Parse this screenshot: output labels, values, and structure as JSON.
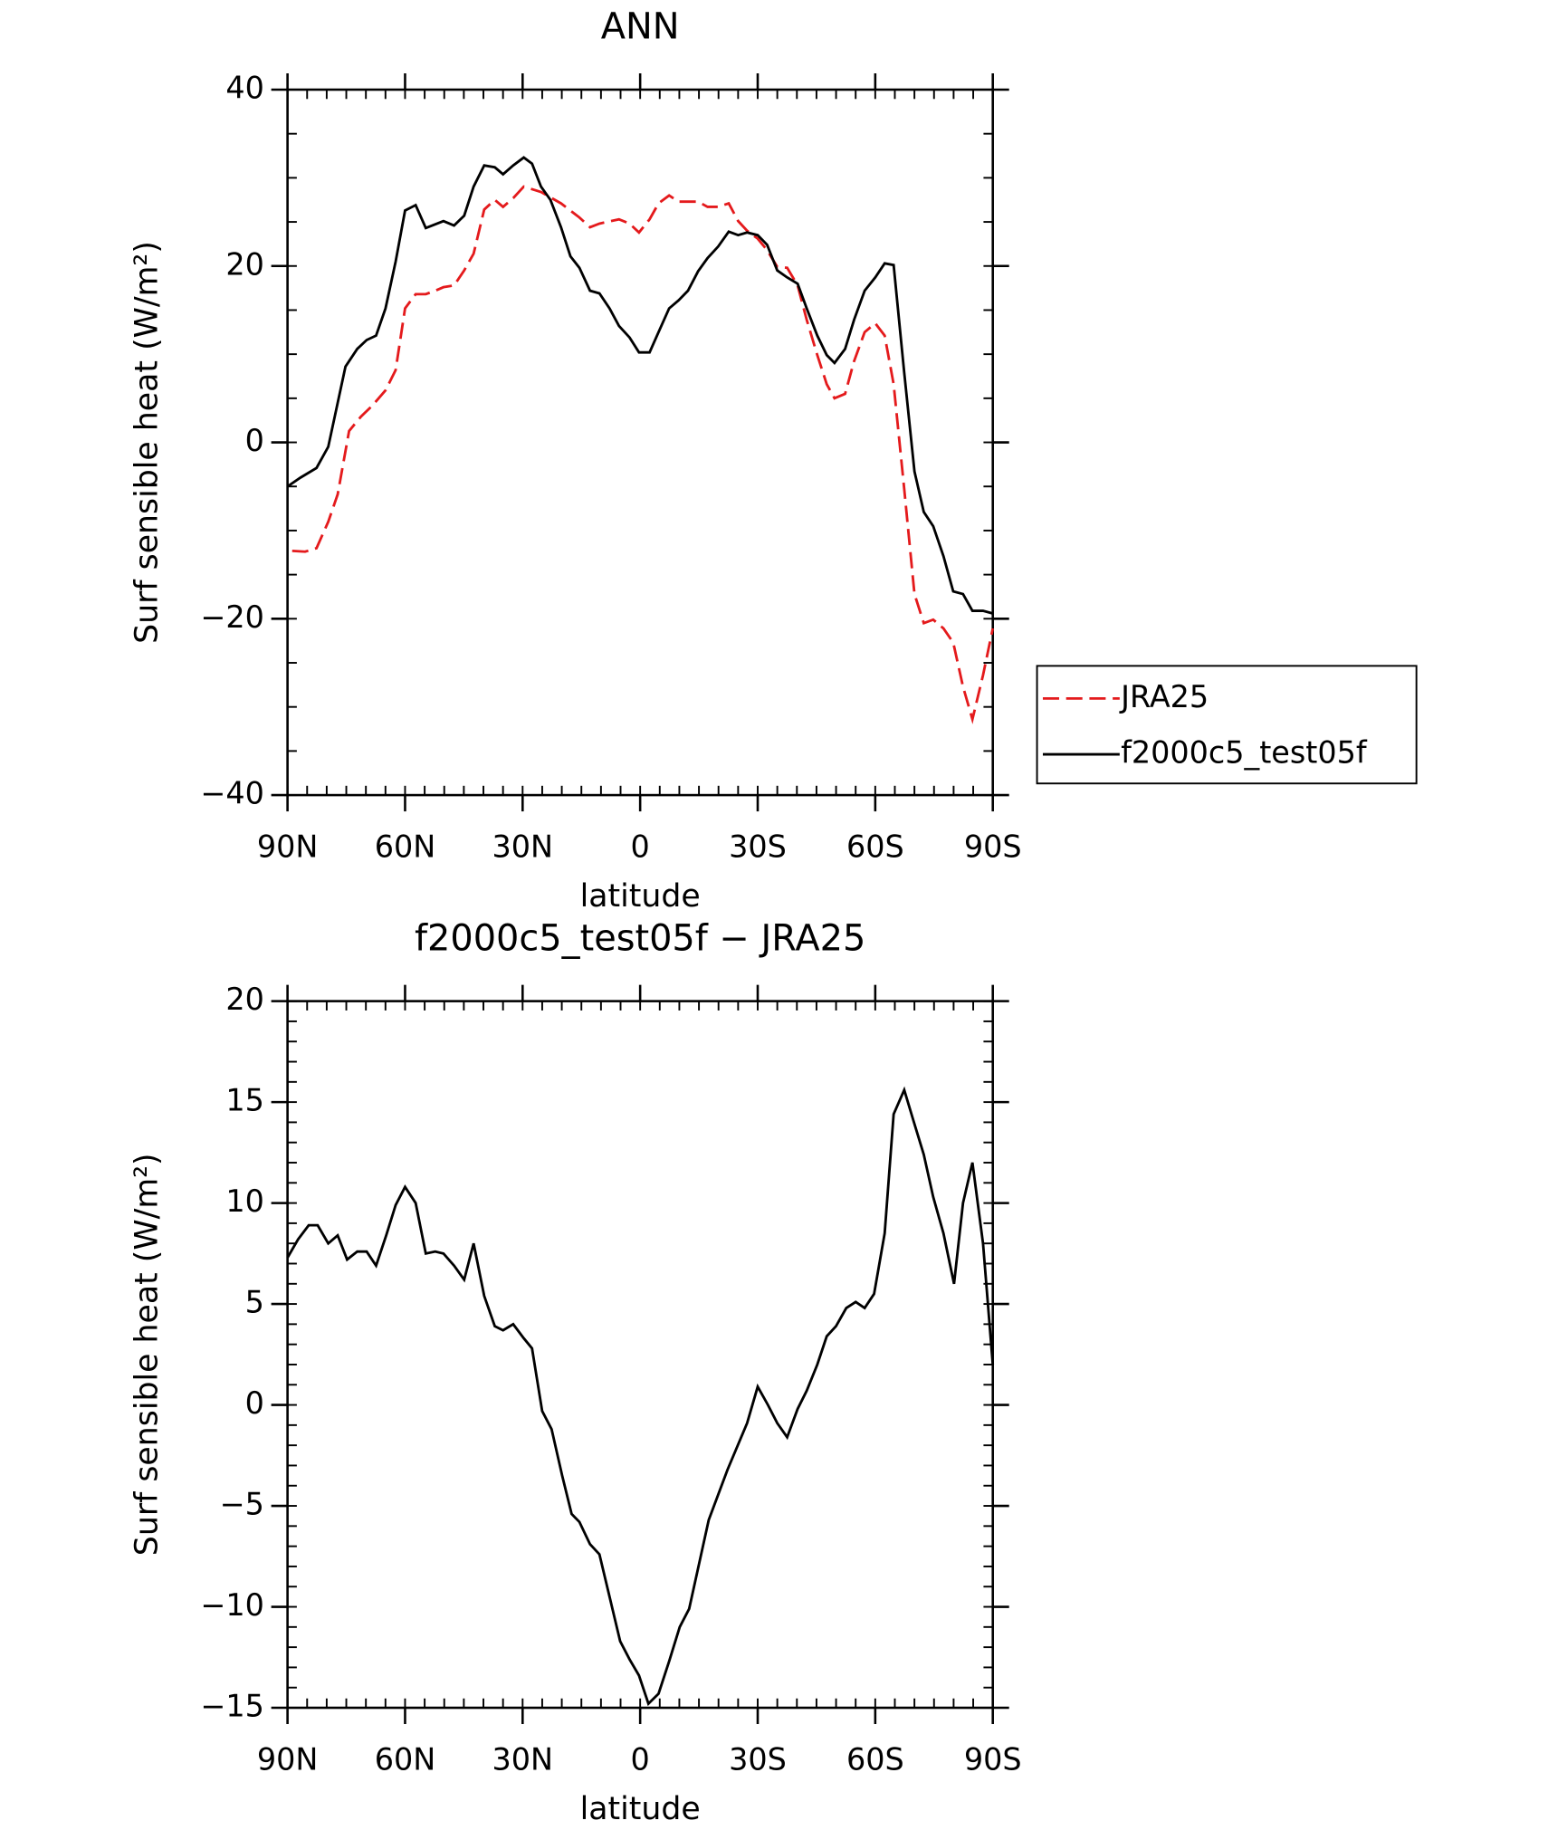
{
  "chart_data": [
    {
      "type": "line",
      "title": "ANN",
      "xlabel": "latitude",
      "ylabel": "Surf sensible heat (W/m²)",
      "xlim": [
        90,
        -90
      ],
      "xticks": [
        {
          "value": 90,
          "label": "90N"
        },
        {
          "value": 60,
          "label": "60N"
        },
        {
          "value": 30,
          "label": "30N"
        },
        0,
        {
          "value": -30,
          "label": "30S"
        },
        {
          "value": -60,
          "label": "60S"
        },
        {
          "value": -90,
          "label": "90S"
        }
      ],
      "xminor": 5,
      "ylim": [
        -40,
        40
      ],
      "yticks": [
        {
          "value": -40,
          "label": "−40"
        },
        {
          "value": -20,
          "label": "−20"
        },
        0,
        20,
        40
      ],
      "yminor": 5,
      "legend": "right",
      "series": [
        {
          "name": "JRA25",
          "color": "#e41a1c",
          "dash": true,
          "x": [
            88.8,
            85.5,
            82.6,
            79.6,
            77.2,
            74.3,
            71.3,
            68.3,
            65,
            62.4,
            60,
            57.3,
            54.7,
            52.3,
            50.2,
            47.5,
            44.9,
            42.5,
            39.8,
            37.1,
            35,
            32.4,
            29.7,
            25.3,
            20.2,
            15.5,
            12.8,
            10.4,
            5.4,
            2.7,
            0.3,
            -2.4,
            -4.7,
            -7.4,
            -9.8,
            -14.8,
            -17.2,
            -19.9,
            -22.6,
            -25,
            -27.3,
            -30,
            -32.4,
            -35,
            -37.5,
            -40.2,
            -42.5,
            -45.2,
            -47.6,
            -49.6,
            -52.3,
            -54.6,
            -57.3,
            -60,
            -62.4,
            -64.7,
            -67.4,
            -70,
            -72.4,
            -74.8,
            -77.4,
            -79.9,
            -82.4,
            -84.8,
            -87.5,
            -90
          ],
          "values": [
            -12.3,
            -12.4,
            -12,
            -9,
            -5.9,
            1.3,
            2.9,
            4.2,
            5.9,
            8.2,
            15.2,
            16.8,
            16.8,
            17.2,
            17.6,
            17.8,
            19.5,
            21.4,
            26.4,
            27.5,
            26.7,
            27.7,
            29,
            28.4,
            27.1,
            25.5,
            24.4,
            24.8,
            25.3,
            24.8,
            23.8,
            25.3,
            27.1,
            28,
            27.3,
            27.3,
            26.7,
            26.7,
            27.1,
            25.1,
            24,
            23.1,
            21.8,
            19.9,
            19.8,
            17.8,
            13.9,
            9.9,
            6.6,
            5,
            5.5,
            9.2,
            12.5,
            13.5,
            12.1,
            6.6,
            -5.3,
            -17.2,
            -20.5,
            -20.1,
            -21.1,
            -22.7,
            -27.7,
            -31.4,
            -26.4,
            -21.1
          ]
        },
        {
          "name": "f2000c5_test05f",
          "color": "#000000",
          "dash": false,
          "x": [
            90,
            86.7,
            82.6,
            79.6,
            75.2,
            72.2,
            69.8,
            67.4,
            65,
            62.4,
            60,
            57.3,
            54.7,
            50.2,
            47.5,
            44.9,
            42.5,
            39.8,
            37.1,
            35,
            32.4,
            29.7,
            27.6,
            25.3,
            22.9,
            20.2,
            17.8,
            15.5,
            12.8,
            10.4,
            7.8,
            5.4,
            2.7,
            0.3,
            -2.4,
            -4.7,
            -7.4,
            -9.8,
            -12.2,
            -14.8,
            -17.2,
            -19.9,
            -22.6,
            -25,
            -27.3,
            -30,
            -32.4,
            -35,
            -37.5,
            -40.2,
            -42.5,
            -45.2,
            -47.6,
            -49.6,
            -52.3,
            -54.6,
            -57.3,
            -60,
            -62.4,
            -64.7,
            -67.4,
            -70,
            -72.4,
            -74.8,
            -77.4,
            -79.9,
            -82.4,
            -84.8,
            -87.5,
            -90
          ],
          "values": [
            -5,
            -4,
            -2.9,
            -0.5,
            8.6,
            10.6,
            11.6,
            12.1,
            15.2,
            20.5,
            26.3,
            26.9,
            24.3,
            25.1,
            24.6,
            25.7,
            29,
            31.4,
            31.2,
            30.4,
            31.4,
            32.3,
            31.6,
            29,
            27.5,
            24.4,
            21.1,
            19.8,
            17.2,
            16.9,
            15.2,
            13.2,
            11.9,
            10.2,
            10.2,
            12.5,
            15.2,
            16.1,
            17.2,
            19.4,
            20.9,
            22.2,
            23.9,
            23.5,
            23.8,
            23.5,
            22.4,
            19.5,
            18.7,
            18,
            15.2,
            12.1,
            9.9,
            9,
            10.6,
            13.9,
            17.2,
            18.7,
            20.3,
            20.1,
            7.9,
            -3.3,
            -7.9,
            -9.5,
            -12.9,
            -16.9,
            -17.2,
            -19.1,
            -19.1,
            -19.4
          ]
        }
      ]
    },
    {
      "type": "line",
      "title": "f2000c5_test05f − JRA25",
      "xlabel": "latitude",
      "ylabel": "Surf sensible heat (W/m²)",
      "xlim": [
        90,
        -90
      ],
      "xticks": [
        {
          "value": 90,
          "label": "90N"
        },
        {
          "value": 60,
          "label": "60N"
        },
        {
          "value": 30,
          "label": "30N"
        },
        0,
        {
          "value": -30,
          "label": "30S"
        },
        {
          "value": -60,
          "label": "60S"
        },
        {
          "value": -90,
          "label": "90S"
        }
      ],
      "xminor": 5,
      "ylim": [
        -15,
        20
      ],
      "yticks": [
        {
          "value": -15,
          "label": "−15"
        },
        {
          "value": -10,
          "label": "−10"
        },
        {
          "value": -5,
          "label": "−5"
        },
        0,
        5,
        10,
        15,
        20
      ],
      "yminor": 1,
      "series": [
        {
          "color": "#000000",
          "dash": false,
          "x": [
            90,
            87.3,
            84.6,
            82.3,
            79.6,
            77.2,
            74.8,
            72.2,
            69.8,
            67.4,
            64.8,
            62.4,
            60,
            57.3,
            54.7,
            52.3,
            50.2,
            47.5,
            44.9,
            42.5,
            39.8,
            37.1,
            35,
            32.4,
            29.7,
            27.6,
            25,
            22.6,
            19.9,
            17.5,
            15.5,
            12.8,
            10.4,
            7.8,
            5.1,
            2.7,
            0.3,
            -2.1,
            -4.7,
            -7.4,
            -10.1,
            -12.5,
            -17.5,
            -22.3,
            -27.3,
            -30,
            -32.6,
            -35,
            -37.5,
            -40.2,
            -42.5,
            -45.2,
            -47.6,
            -50,
            -52.6,
            -55,
            -57.3,
            -59.7,
            -62.4,
            -64.7,
            -67.4,
            -69.7,
            -72.4,
            -74.8,
            -77.4,
            -80.1,
            -82.4,
            -84.8,
            -87.5,
            -90
          ],
          "values": [
            7.3,
            8.2,
            8.9,
            8.9,
            8,
            8.4,
            7.2,
            7.6,
            7.6,
            6.9,
            8.4,
            9.9,
            10.8,
            10,
            7.5,
            7.6,
            7.5,
            6.9,
            6.2,
            8,
            5.4,
            3.9,
            3.7,
            4,
            3.3,
            2.8,
            -0.3,
            -1.2,
            -3.5,
            -5.4,
            -5.8,
            -6.9,
            -7.4,
            -9.5,
            -11.7,
            -12.6,
            -13.4,
            -14.8,
            -14.3,
            -12.7,
            -11,
            -10.1,
            -5.7,
            -3.2,
            -0.9,
            0.9,
            0,
            -0.9,
            -1.6,
            -0.2,
            0.7,
            2,
            3.4,
            3.9,
            4.8,
            5.1,
            4.8,
            5.5,
            8.5,
            14.4,
            15.6,
            14.1,
            12.4,
            10.3,
            8.5,
            6,
            10,
            12,
            8,
            2
          ]
        }
      ]
    }
  ]
}
